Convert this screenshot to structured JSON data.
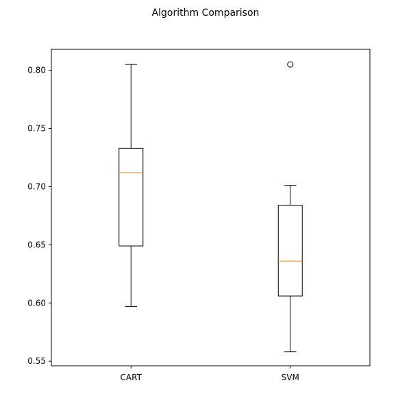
{
  "chart_data": {
    "type": "box",
    "title": "Algorithm Comparison",
    "xlabel": "",
    "ylabel": "",
    "ylim": [
      0.546,
      0.818
    ],
    "yticks": [
      0.55,
      0.6,
      0.65,
      0.7,
      0.75,
      0.8
    ],
    "ytick_labels": [
      "0.55",
      "0.60",
      "0.65",
      "0.70",
      "0.75",
      "0.80"
    ],
    "grid": false,
    "categories": [
      "CART",
      "SVM"
    ],
    "boxes": [
      {
        "category": "CART",
        "whisker_low": 0.597,
        "q1": 0.649,
        "median": 0.712,
        "q3": 0.733,
        "whisker_high": 0.805,
        "outliers": []
      },
      {
        "category": "SVM",
        "whisker_low": 0.558,
        "q1": 0.606,
        "median": 0.636,
        "q3": 0.684,
        "whisker_high": 0.701,
        "outliers": [
          0.805
        ]
      }
    ],
    "colors": {
      "box": "#000000",
      "median": "#ff7f0e",
      "whisker": "#000000",
      "outlier": "#000000"
    }
  }
}
